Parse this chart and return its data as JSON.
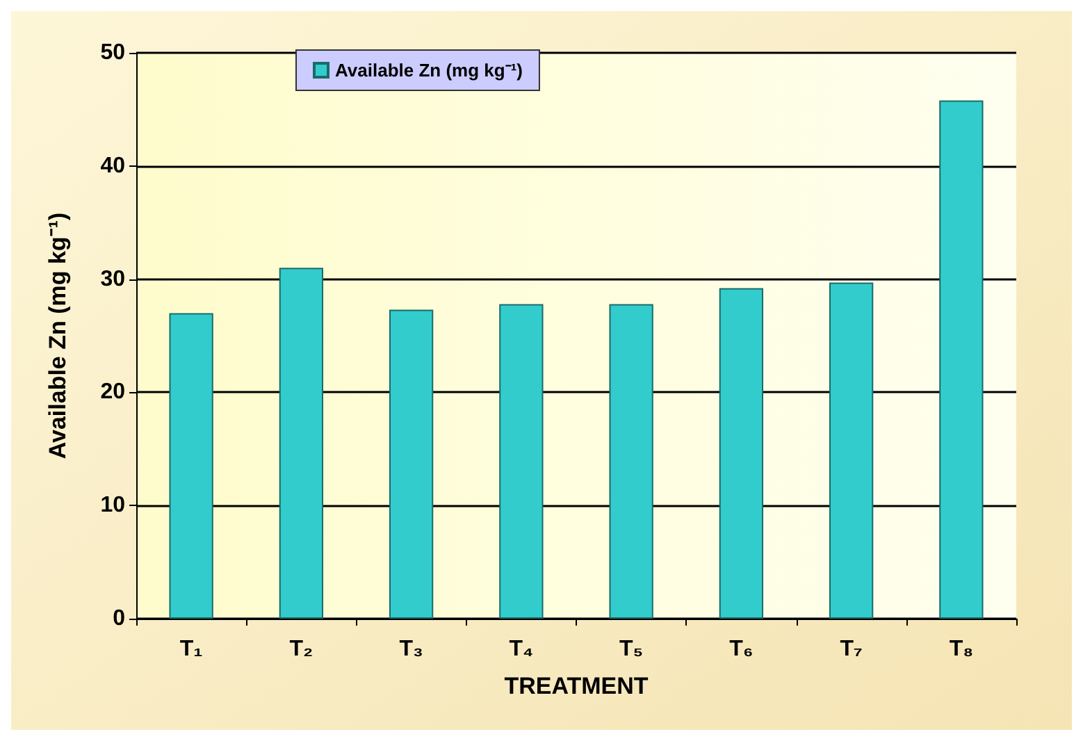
{
  "chart_data": {
    "type": "bar",
    "categories": [
      "T₁",
      "T₂",
      "T₃",
      "T₄",
      "T₅",
      "T₆",
      "T₇",
      "T₈"
    ],
    "series": [
      {
        "name": "Available Zn (mg kg⁻¹)",
        "color": "#33cccc",
        "values": [
          27,
          31,
          27.3,
          27.8,
          27.8,
          29.2,
          29.7,
          45.8
        ]
      }
    ],
    "xlabel": "TREATMENT",
    "ylabel": "Available Zn (mg kg⁻¹)",
    "ylim": [
      0,
      50
    ],
    "yticks": [
      0,
      10,
      20,
      30,
      40,
      50
    ],
    "grid": "y",
    "legend": "top left"
  }
}
